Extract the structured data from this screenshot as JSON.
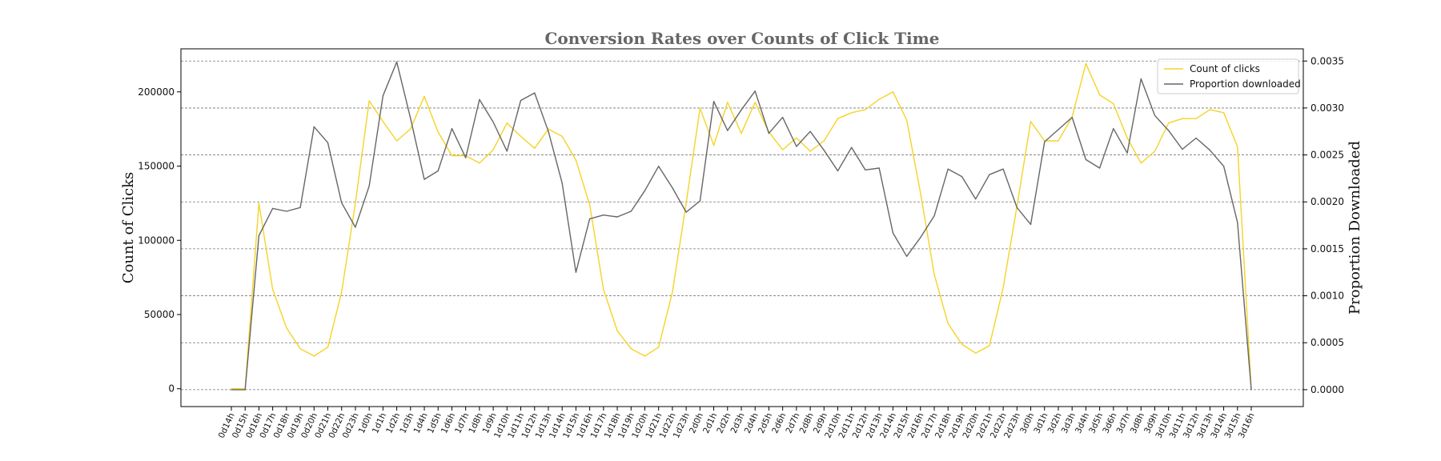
{
  "chart_data": {
    "type": "line",
    "title": "Conversion Rates over Counts of Click Time",
    "ylabel_left": "Count of Clicks",
    "ylabel_right": "Proportion Downloaded",
    "xlabel": "",
    "ylim_left": [
      -12000,
      229000
    ],
    "ylim_right": [
      -0.00018,
      0.00363
    ],
    "yticks_left": [
      0,
      50000,
      100000,
      150000,
      200000
    ],
    "yticks_left_labels": [
      "0",
      "50000",
      "100000",
      "150000",
      "200000"
    ],
    "yticks_right": [
      0.0,
      0.0005,
      0.001,
      0.0015,
      0.002,
      0.0025,
      0.003,
      0.0035
    ],
    "yticks_right_labels": [
      "0.0000",
      "0.0005",
      "0.0010",
      "0.0015",
      "0.0020",
      "0.0025",
      "0.0030",
      "0.0035"
    ],
    "grid": "horizontal dashed (right axis)",
    "legend_position": "top-right",
    "colors": {
      "clicks": "#f5d327",
      "proportion": "#666666",
      "grid": "#777777",
      "spine": "#000000"
    },
    "x": [
      "0d14h",
      "0d15h",
      "0d16h",
      "0d17h",
      "0d18h",
      "0d19h",
      "0d20h",
      "0d21h",
      "0d22h",
      "0d23h",
      "1d0h",
      "1d1h",
      "1d2h",
      "1d3h",
      "1d4h",
      "1d5h",
      "1d6h",
      "1d7h",
      "1d8h",
      "1d9h",
      "1d10h",
      "1d11h",
      "1d12h",
      "1d13h",
      "1d14h",
      "1d15h",
      "1d16h",
      "1d17h",
      "1d18h",
      "1d19h",
      "1d20h",
      "1d21h",
      "1d22h",
      "1d23h",
      "2d0h",
      "2d1h",
      "2d2h",
      "2d3h",
      "2d4h",
      "2d5h",
      "2d6h",
      "2d7h",
      "2d8h",
      "2d9h",
      "2d10h",
      "2d11h",
      "2d12h",
      "2d13h",
      "2d14h",
      "2d15h",
      "2d16h",
      "2d17h",
      "2d18h",
      "2d19h",
      "2d20h",
      "2d21h",
      "2d22h",
      "2d23h",
      "3d0h",
      "3d1h",
      "3d2h",
      "3d3h",
      "3d4h",
      "3d5h",
      "3d6h",
      "3d7h",
      "3d8h",
      "3d9h",
      "3d10h",
      "3d11h",
      "3d12h",
      "3d13h",
      "3d14h",
      "3d15h",
      "3d16h"
    ],
    "series": [
      {
        "name": "Count of clicks",
        "axis": "left",
        "values": [
          0,
          0,
          125000,
          67000,
          41000,
          27000,
          22000,
          28000,
          65000,
          125000,
          194000,
          180000,
          167000,
          175000,
          197000,
          173000,
          157000,
          157000,
          152000,
          161000,
          179000,
          170000,
          162000,
          175000,
          170000,
          154000,
          124000,
          67000,
          39000,
          27000,
          22000,
          28000,
          65000,
          125000,
          189000,
          164000,
          193000,
          172000,
          193000,
          173000,
          161000,
          169000,
          160000,
          167000,
          182000,
          186000,
          188000,
          195000,
          200000,
          181000,
          132000,
          77000,
          44000,
          30000,
          24000,
          29000,
          68000,
          123000,
          180000,
          167000,
          167000,
          183000,
          219000,
          198000,
          192000,
          169000,
          152000,
          160000,
          179000,
          182000,
          182000,
          188000,
          186000,
          163000,
          0
        ]
      },
      {
        "name": "Proportion downloaded",
        "axis": "right",
        "values": [
          0.0,
          0.0,
          0.00164,
          0.00193,
          0.0019,
          0.00194,
          0.0028,
          0.00263,
          0.00199,
          0.00173,
          0.00217,
          0.00313,
          0.00349,
          0.00289,
          0.00224,
          0.00233,
          0.00278,
          0.00247,
          0.00309,
          0.00285,
          0.00254,
          0.00308,
          0.00316,
          0.00275,
          0.0022,
          0.00125,
          0.00182,
          0.00186,
          0.00184,
          0.0019,
          0.00212,
          0.00238,
          0.00215,
          0.00189,
          0.00201,
          0.00307,
          0.00276,
          0.00298,
          0.00318,
          0.00273,
          0.0029,
          0.00259,
          0.00275,
          0.00255,
          0.00233,
          0.00258,
          0.00234,
          0.00236,
          0.00167,
          0.00142,
          0.00162,
          0.00185,
          0.00235,
          0.00227,
          0.00203,
          0.00229,
          0.00235,
          0.00194,
          0.00176,
          0.00264,
          0.00277,
          0.0029,
          0.00245,
          0.00236,
          0.00278,
          0.00252,
          0.00331,
          0.00292,
          0.00276,
          0.00256,
          0.00268,
          0.00255,
          0.00238,
          0.00178,
          0.0
        ]
      }
    ]
  }
}
